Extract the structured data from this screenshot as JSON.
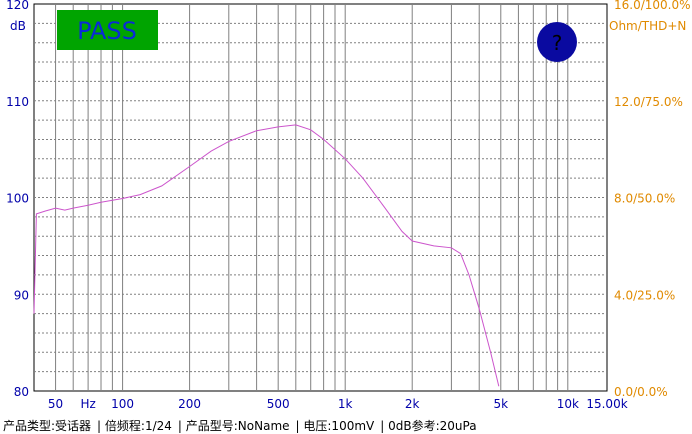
{
  "chart_data": {
    "type": "line",
    "x_scale": "log",
    "xlim": [
      40,
      15000
    ],
    "ylim": [
      80,
      120
    ],
    "y2lim_text": [
      "0.0/0.0%",
      "4.0/25.0%",
      "8.0/50.0%",
      "12.0/75.0%",
      "16.0/100.0%"
    ],
    "left_unit": "dB",
    "right_unit": "Ohm/THD+N",
    "x_ticks": [
      {
        "value": 50,
        "label": "50"
      },
      {
        "value": 100,
        "label": "100"
      },
      {
        "value": 200,
        "label": "200"
      },
      {
        "value": 500,
        "label": "500"
      },
      {
        "value": 1000,
        "label": "1k"
      },
      {
        "value": 2000,
        "label": "2k"
      },
      {
        "value": 5000,
        "label": "5k"
      },
      {
        "value": 10000,
        "label": "10k"
      },
      {
        "value": 15000,
        "label": "15.00k"
      }
    ],
    "x_unit_label": "Hz",
    "y_ticks": [
      80,
      90,
      100,
      110,
      120
    ],
    "grid": true,
    "series": [
      {
        "color": "#cc55cc",
        "points": [
          [
            40,
            88
          ],
          [
            41,
            98.3
          ],
          [
            45,
            98.6
          ],
          [
            50,
            98.9
          ],
          [
            55,
            98.7
          ],
          [
            60,
            98.9
          ],
          [
            70,
            99.2
          ],
          [
            80,
            99.5
          ],
          [
            100,
            99.9
          ],
          [
            120,
            100.3
          ],
          [
            150,
            101.2
          ],
          [
            200,
            103.2
          ],
          [
            250,
            104.8
          ],
          [
            300,
            105.8
          ],
          [
            400,
            106.9
          ],
          [
            500,
            107.3
          ],
          [
            600,
            107.5
          ],
          [
            700,
            107.0
          ],
          [
            800,
            106.0
          ],
          [
            1000,
            104.0
          ],
          [
            1200,
            102.0
          ],
          [
            1500,
            99.0
          ],
          [
            1800,
            96.5
          ],
          [
            2000,
            95.5
          ],
          [
            2500,
            95.0
          ],
          [
            3000,
            94.8
          ],
          [
            3300,
            94.2
          ],
          [
            3600,
            92.0
          ],
          [
            4000,
            88.5
          ],
          [
            4500,
            84.0
          ],
          [
            4900,
            80.5
          ]
        ]
      }
    ]
  },
  "badge": {
    "pass_text": "PASS",
    "marker_text": "?"
  },
  "colors": {
    "grid": "#808080",
    "curve": "#cc55cc",
    "right_axis": "#e08a00",
    "pass_bg": "#00a400",
    "pass_text": "#0a2ad8",
    "marker": "#0a0aa0"
  },
  "footer": {
    "product_type": "产品类型:受话器",
    "octave": "倍频程:1/24",
    "model": "产品型号:NoName",
    "voltage": "电压:100mV",
    "reference": "0dB参考:20uPa"
  }
}
